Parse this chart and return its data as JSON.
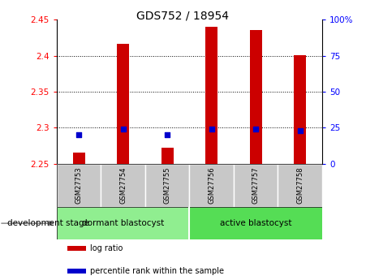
{
  "title": "GDS752 / 18954",
  "samples": [
    "GSM27753",
    "GSM27754",
    "GSM27755",
    "GSM27756",
    "GSM27757",
    "GSM27758"
  ],
  "log_ratios": [
    2.265,
    2.416,
    2.272,
    2.44,
    2.435,
    2.401
  ],
  "percentile_ranks": [
    20,
    24,
    20,
    24,
    24,
    23
  ],
  "ylim_left": [
    2.25,
    2.45
  ],
  "ylim_right": [
    0,
    100
  ],
  "yticks_left": [
    2.25,
    2.3,
    2.35,
    2.4,
    2.45
  ],
  "yticks_right": [
    0,
    25,
    50,
    75,
    100
  ],
  "bar_color": "#cc0000",
  "dot_color": "#0000cc",
  "bar_bottom": 2.25,
  "groups": [
    {
      "label": "dormant blastocyst",
      "samples": [
        0,
        1,
        2
      ],
      "color": "#90ee90"
    },
    {
      "label": "active blastocyst",
      "samples": [
        3,
        4,
        5
      ],
      "color": "#55dd55"
    }
  ],
  "group_label": "development stage",
  "legend_items": [
    {
      "label": "log ratio",
      "color": "#cc0000"
    },
    {
      "label": "percentile rank within the sample",
      "color": "#0000cc"
    }
  ],
  "tick_bg": "#c8c8c8",
  "bar_width": 0.28
}
